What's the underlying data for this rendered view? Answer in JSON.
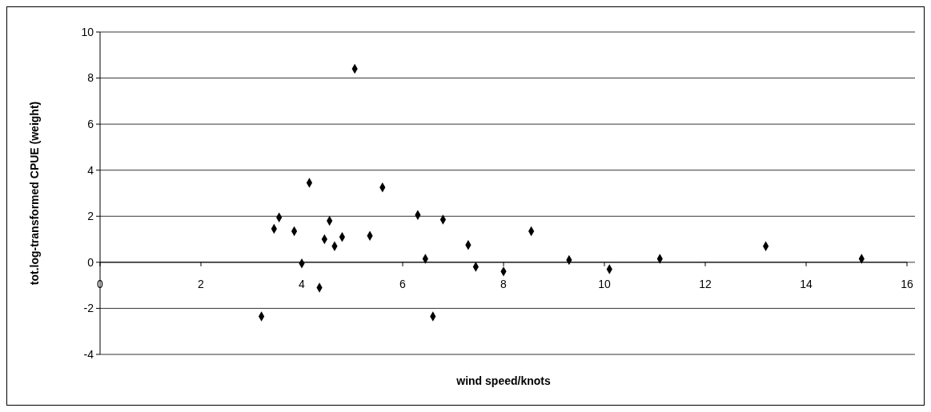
{
  "chart_data": {
    "type": "scatter",
    "xlabel": "wind speed/knots",
    "ylabel": "tot.log-transformed CPUE (weight)",
    "xlim": [
      0,
      16
    ],
    "xticks": [
      0,
      2,
      4,
      6,
      8,
      10,
      12,
      14,
      16
    ],
    "ylim": [
      -4,
      10
    ],
    "yticks": [
      -4,
      -2,
      0,
      2,
      4,
      6,
      8,
      10
    ],
    "grid": "y",
    "marker": "diamond",
    "series": [
      {
        "color": "#000000",
        "x": [
          3.2,
          3.45,
          3.55,
          3.85,
          4.0,
          4.15,
          4.35,
          4.45,
          4.55,
          4.65,
          4.8,
          5.05,
          5.35,
          5.6,
          6.3,
          6.45,
          6.6,
          6.8,
          7.3,
          7.45,
          8.0,
          8.55,
          9.3,
          10.1,
          11.1,
          13.2,
          15.1
        ],
        "values": [
          -2.35,
          1.45,
          1.95,
          1.35,
          -0.05,
          3.45,
          -1.1,
          1.0,
          1.8,
          0.7,
          1.1,
          8.4,
          1.15,
          3.25,
          2.05,
          0.15,
          -2.35,
          1.85,
          0.75,
          -0.2,
          -0.4,
          1.35,
          0.1,
          -0.3,
          0.15,
          0.7,
          0.15
        ]
      }
    ]
  }
}
